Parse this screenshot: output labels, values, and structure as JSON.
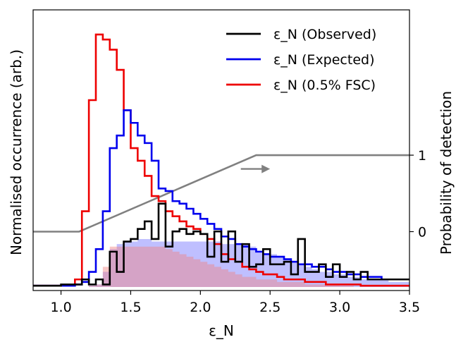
{
  "chart_data": {
    "type": "step",
    "xlabel": "ε_N",
    "ylabel": "Normalised occurrence (arb.)",
    "ylabel_right": "Probability of detection",
    "xlim": [
      0.8,
      3.5
    ],
    "x_ticks": [
      "1.0",
      "1.5",
      "2.0",
      "2.5",
      "3.0",
      "3.5"
    ],
    "x_tick_values": [
      1.0,
      1.5,
      2.0,
      2.5,
      3.0,
      3.5
    ],
    "right_ticks": [
      "0",
      "1"
    ],
    "right_tick_values": [
      0,
      1
    ],
    "right_ylim": [
      -0.77,
      2.9
    ],
    "left_ylim": [
      0,
      1.05
    ],
    "legend_position": "top-right",
    "bin_edges": [
      0.8,
      0.85,
      0.9,
      0.95,
      1.0,
      1.05,
      1.1,
      1.15,
      1.2,
      1.25,
      1.3,
      1.35,
      1.4,
      1.45,
      1.5,
      1.55,
      1.6,
      1.65,
      1.7,
      1.75,
      1.8,
      1.85,
      1.9,
      1.95,
      2.0,
      2.05,
      2.1,
      2.15,
      2.2,
      2.25,
      2.3,
      2.35,
      2.4,
      2.45,
      2.5,
      2.55,
      2.6,
      2.65,
      2.7,
      2.75,
      2.8,
      2.85,
      2.9,
      2.95,
      3.0,
      3.05,
      3.1,
      3.15,
      3.2,
      3.25,
      3.3,
      3.35,
      3.4,
      3.45,
      3.5
    ],
    "series": [
      {
        "name": "ε_N (Observed)",
        "color": "#000000",
        "values": [
          0.005,
          0.005,
          0.005,
          0.005,
          0.01,
          0.01,
          0.01,
          0.03,
          0.01,
          0.03,
          0.01,
          0.14,
          0.06,
          0.18,
          0.19,
          0.23,
          0.26,
          0.19,
          0.33,
          0.16,
          0.22,
          0.23,
          0.21,
          0.22,
          0.21,
          0.12,
          0.22,
          0.1,
          0.22,
          0.1,
          0.17,
          0.08,
          0.09,
          0.15,
          0.09,
          0.09,
          0.1,
          0.05,
          0.19,
          0.06,
          0.06,
          0.09,
          0.04,
          0.09,
          0.04,
          0.06,
          0.03,
          0.06,
          0.03,
          0.03,
          0.03,
          0.03,
          0.03,
          0.03
        ]
      },
      {
        "name": "ε_N (Expected)",
        "color": "#0000ee",
        "values": [
          0.005,
          0.005,
          0.005,
          0.005,
          0.005,
          0.005,
          0.01,
          0.02,
          0.06,
          0.15,
          0.3,
          0.55,
          0.6,
          0.7,
          0.65,
          0.6,
          0.57,
          0.5,
          0.39,
          0.38,
          0.34,
          0.33,
          0.31,
          0.29,
          0.27,
          0.25,
          0.23,
          0.2,
          0.19,
          0.17,
          0.16,
          0.15,
          0.14,
          0.13,
          0.12,
          0.12,
          0.11,
          0.1,
          0.09,
          0.09,
          0.08,
          0.08,
          0.07,
          0.06,
          0.06,
          0.05,
          0.05,
          0.04,
          0.04,
          0.04,
          0.03,
          0.03,
          0.03,
          0.03
        ]
      },
      {
        "name": "ε_N (0.5% FSC)",
        "color": "#ee0000",
        "values": [
          0.005,
          0.005,
          0.005,
          0.005,
          0.005,
          0.005,
          0.03,
          0.3,
          0.74,
          1.0,
          0.98,
          0.94,
          0.86,
          0.7,
          0.55,
          0.5,
          0.44,
          0.36,
          0.34,
          0.3,
          0.28,
          0.26,
          0.24,
          0.23,
          0.21,
          0.19,
          0.17,
          0.13,
          0.11,
          0.1,
          0.08,
          0.07,
          0.06,
          0.05,
          0.05,
          0.04,
          0.03,
          0.03,
          0.03,
          0.02,
          0.02,
          0.02,
          0.01,
          0.01,
          0.01,
          0.01,
          0.01,
          0.005,
          0.005,
          0.005,
          0.005,
          0.005,
          0.005,
          0.005
        ]
      }
    ],
    "filled_series": [
      {
        "color": "#7070ff",
        "values": [
          0,
          0,
          0,
          0,
          0,
          0,
          0,
          0,
          0.005,
          0.01,
          0.06,
          0.15,
          0.17,
          0.18,
          0.18,
          0.19,
          0.19,
          0.18,
          0.18,
          0.18,
          0.18,
          0.18,
          0.18,
          0.18,
          0.18,
          0.18,
          0.18,
          0.17,
          0.17,
          0.17,
          0.17,
          0.16,
          0.14,
          0.13,
          0.13,
          0.12,
          0.11,
          0.1,
          0.09,
          0.08,
          0.07,
          0.06,
          0.06,
          0.05,
          0.05,
          0.04,
          0.04,
          0.03,
          0.03,
          0.03,
          0.03,
          0.02,
          0.02,
          0.02
        ]
      },
      {
        "color": "#f08080",
        "values": [
          0,
          0,
          0,
          0,
          0,
          0,
          0,
          0,
          0.005,
          0.01,
          0.08,
          0.16,
          0.16,
          0.16,
          0.16,
          0.16,
          0.16,
          0.16,
          0.16,
          0.15,
          0.14,
          0.13,
          0.12,
          0.11,
          0.1,
          0.09,
          0.08,
          0.07,
          0.06,
          0.05,
          0.04,
          0.04,
          0.03,
          0.03,
          0.03,
          0.02,
          0.02,
          0.02,
          0.02,
          0.01,
          0.01,
          0.01,
          0.01,
          0.01,
          0.005,
          0.005,
          0,
          0,
          0,
          0,
          0,
          0,
          0,
          0
        ]
      }
    ],
    "probability_curve": {
      "color": "#808080",
      "x": [
        0.8,
        1.13,
        2.4,
        3.5
      ],
      "y": [
        0,
        0,
        1,
        1
      ]
    },
    "arrow": {
      "color": "#808080",
      "direction": "right",
      "x_from": 2.29,
      "x_to": 2.5,
      "y": 0.82
    }
  }
}
